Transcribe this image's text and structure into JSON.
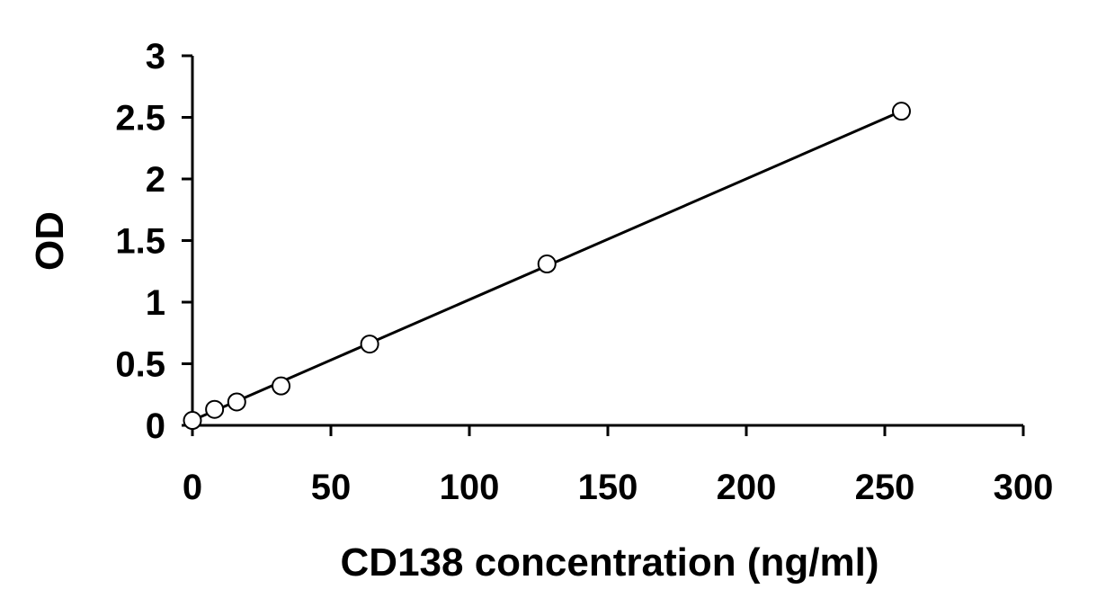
{
  "chart_data": {
    "type": "scatter",
    "xlabel": "CD138 concentration (ng/ml)",
    "ylabel": "OD",
    "xlim": [
      0,
      300
    ],
    "ylim": [
      0,
      3
    ],
    "x_ticks": [
      0,
      50,
      100,
      150,
      200,
      250,
      300
    ],
    "x_tick_labels": [
      "0",
      "50",
      "100",
      "150",
      "200",
      "250",
      "300"
    ],
    "y_ticks": [
      0,
      0.5,
      1,
      1.5,
      2,
      2.5,
      3
    ],
    "y_tick_labels": [
      "0",
      "0.5",
      "1",
      "1.5",
      "2",
      "2.5",
      "3"
    ],
    "grid": false,
    "legend": "none",
    "series": [
      {
        "marker": "open-circle",
        "x": [
          0,
          8,
          16,
          32,
          64,
          128,
          256
        ],
        "y": [
          0.04,
          0.13,
          0.19,
          0.32,
          0.66,
          1.31,
          2.55
        ]
      }
    ],
    "trendline": {
      "type": "linear",
      "x": [
        0,
        256
      ],
      "y": [
        0.04,
        2.55
      ]
    },
    "colors": {
      "axis": "#000000",
      "marker_stroke": "#000000",
      "marker_fill": "#ffffff",
      "line": "#000000"
    }
  }
}
